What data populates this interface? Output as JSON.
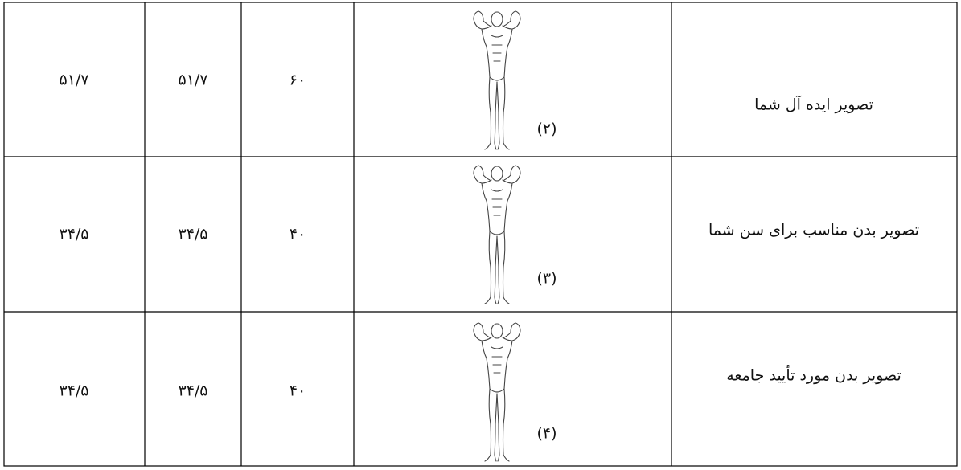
{
  "table": {
    "rows": [
      [
        "۵۱/۷",
        "۵۱/۷",
        "۶۰",
        "(۲)",
        "تصویر ایده آل شما"
      ],
      [
        "۳۴/۵",
        "۳۴/۵",
        "۴۰",
        "(۳)",
        "تصویر بدن مناسب برای سن شما"
      ],
      [
        "۳۴/۵",
        "۳۴/۵",
        "۴۰",
        "(۴)",
        "تصویر بدن مورد تأیید جامعه"
      ]
    ]
  }
}
